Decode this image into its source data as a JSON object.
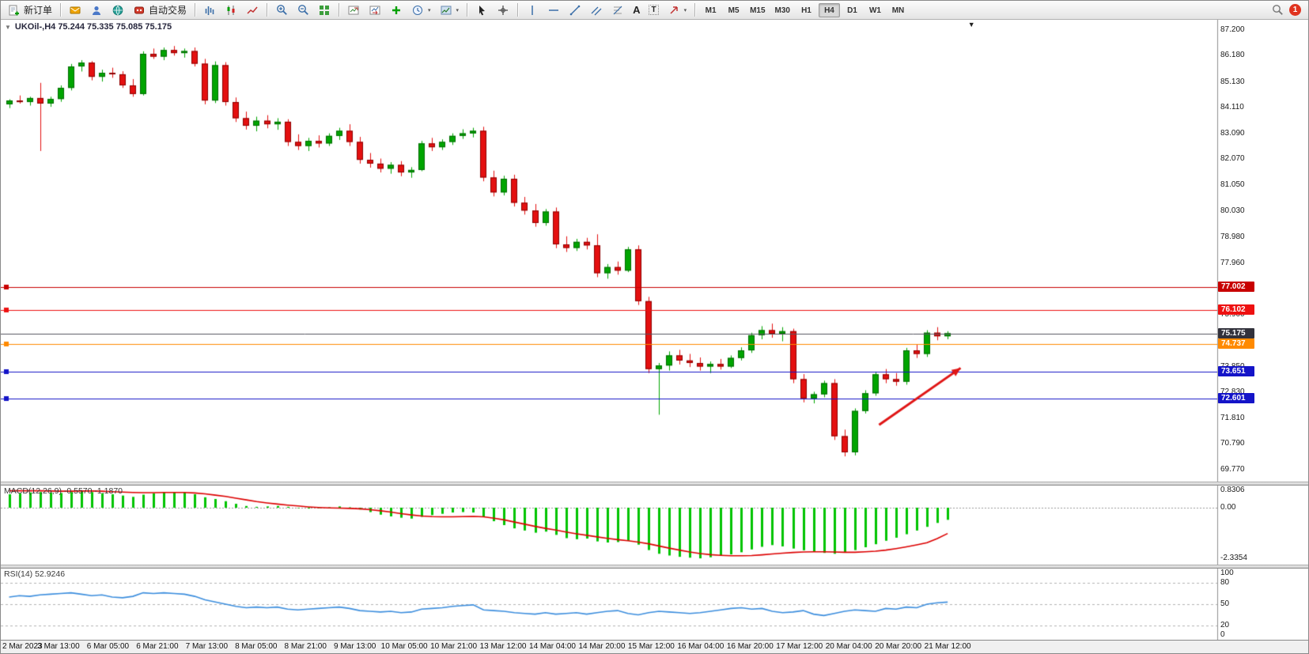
{
  "toolbar": {
    "new_order_label": "新订单",
    "auto_trading_label": "自动交易",
    "text_tool_label": "A",
    "textbox_tool_label": "T",
    "notification_count": "1",
    "timeframes": [
      {
        "label": "M1",
        "active": false
      },
      {
        "label": "M5",
        "active": false
      },
      {
        "label": "M15",
        "active": false
      },
      {
        "label": "M30",
        "active": false
      },
      {
        "label": "H1",
        "active": false
      },
      {
        "label": "H4",
        "active": true
      },
      {
        "label": "D1",
        "active": false
      },
      {
        "label": "W1",
        "active": false
      },
      {
        "label": "MN",
        "active": false
      }
    ]
  },
  "chart": {
    "symbol_info": "UKOil-,H4 75.244 75.335 75.085 75.175"
  },
  "indicators": {
    "macd": {
      "label": "MACD(12,26,9) -0.5570 -1.1870"
    },
    "rsi": {
      "label": "RSI(14) 52.9246"
    }
  },
  "time_axis": {
    "labels": [
      "2 Mar 2023",
      "3 Mar 13:00",
      "6 Mar 05:00",
      "6 Mar 21:00",
      "7 Mar 13:00",
      "8 Mar 05:00",
      "8 Mar 21:00",
      "9 Mar 13:00",
      "10 Mar 05:00",
      "10 Mar 21:00",
      "13 Mar 12:00",
      "14 Mar 04:00",
      "14 Mar 20:00",
      "15 Mar 12:00",
      "16 Mar 04:00",
      "16 Mar 20:00",
      "17 Mar 12:00",
      "20 Mar 04:00",
      "20 Mar 20:00",
      "21 Mar 12:00"
    ]
  },
  "chart_data": [
    {
      "id": "price",
      "type": "candlestick",
      "symbol": "UKOil-",
      "timeframe": "H4",
      "ohlc_readout": {
        "open": 75.244,
        "high": 75.335,
        "low": 75.085,
        "close": 75.175
      },
      "ylim": [
        69.3,
        87.6
      ],
      "region_frac": 0.78,
      "colors": {
        "up": "#00a500",
        "down": "#e41010",
        "up_border": "#006b00",
        "down_border": "#8d0000"
      },
      "y_axis": {
        "tick_labels": [
          "87.200",
          "86.180",
          "85.130",
          "84.110",
          "83.090",
          "82.070",
          "81.050",
          "80.030",
          "78.980",
          "77.960",
          "76.920",
          "75.900",
          "74.880",
          "73.850",
          "72.830",
          "71.810",
          "70.790",
          "69.770"
        ],
        "tick_values": [
          87.2,
          86.18,
          85.13,
          84.11,
          83.09,
          82.07,
          81.05,
          80.03,
          78.98,
          77.96,
          76.92,
          75.9,
          74.88,
          73.85,
          72.83,
          71.81,
          70.79,
          69.77
        ]
      },
      "hlines": [
        {
          "price": 77.002,
          "label": "77.002",
          "color": "#c80000"
        },
        {
          "price": 76.102,
          "label": "76.102",
          "color": "#ee1111"
        },
        {
          "price": 74.737,
          "label": "74.737",
          "color": "#ff8a00"
        },
        {
          "price": 73.651,
          "label": "73.651",
          "color": "#1414c8"
        },
        {
          "price": 72.601,
          "label": "72.601",
          "color": "#1414c8"
        }
      ],
      "current_price": {
        "price": 75.175,
        "label": "75.175",
        "color": "#32323c",
        "line_color": "#55555f"
      },
      "annotations": [
        {
          "type": "arrow",
          "x_frac_start": 0.722,
          "price_start": 71.55,
          "x_frac_end": 0.789,
          "price_end": 73.8,
          "color": "#e01616",
          "width": 3
        }
      ],
      "candles": [
        [
          84.25,
          84.45,
          84.1,
          84.4
        ],
        [
          84.4,
          84.6,
          84.28,
          84.34
        ],
        [
          84.34,
          84.55,
          84.2,
          84.5
        ],
        [
          84.5,
          85.1,
          82.4,
          84.28
        ],
        [
          84.28,
          84.55,
          84.15,
          84.46
        ],
        [
          84.46,
          85.0,
          84.35,
          84.9
        ],
        [
          84.9,
          85.85,
          84.8,
          85.75
        ],
        [
          85.75,
          86.0,
          85.55,
          85.9
        ],
        [
          85.9,
          85.96,
          85.2,
          85.34
        ],
        [
          85.34,
          85.62,
          85.15,
          85.5
        ],
        [
          85.5,
          85.7,
          85.3,
          85.44
        ],
        [
          85.44,
          85.56,
          84.9,
          85.0
        ],
        [
          85.0,
          85.25,
          84.55,
          84.66
        ],
        [
          84.66,
          86.35,
          84.6,
          86.25
        ],
        [
          86.25,
          86.46,
          86.05,
          86.14
        ],
        [
          86.14,
          86.5,
          86.0,
          86.4
        ],
        [
          86.4,
          86.56,
          86.18,
          86.28
        ],
        [
          86.28,
          86.46,
          86.1,
          86.36
        ],
        [
          86.36,
          86.5,
          85.75,
          85.86
        ],
        [
          85.86,
          86.05,
          84.25,
          84.4
        ],
        [
          84.4,
          85.95,
          84.3,
          85.8
        ],
        [
          85.8,
          85.92,
          84.2,
          84.34
        ],
        [
          84.34,
          84.52,
          83.55,
          83.7
        ],
        [
          83.7,
          83.96,
          83.25,
          83.4
        ],
        [
          83.4,
          83.76,
          83.18,
          83.6
        ],
        [
          83.6,
          83.82,
          83.3,
          83.46
        ],
        [
          83.46,
          83.7,
          83.24,
          83.56
        ],
        [
          83.56,
          83.66,
          82.6,
          82.76
        ],
        [
          82.76,
          83.06,
          82.44,
          82.6
        ],
        [
          82.6,
          82.92,
          82.4,
          82.8
        ],
        [
          82.8,
          83.02,
          82.54,
          82.7
        ],
        [
          82.7,
          83.1,
          82.6,
          83.0
        ],
        [
          83.0,
          83.32,
          82.84,
          83.2
        ],
        [
          83.2,
          83.46,
          82.6,
          82.76
        ],
        [
          82.76,
          82.96,
          81.9,
          82.05
        ],
        [
          82.05,
          82.32,
          81.74,
          81.9
        ],
        [
          81.9,
          82.1,
          81.55,
          81.7
        ],
        [
          81.7,
          81.96,
          81.5,
          81.85
        ],
        [
          81.85,
          82.0,
          81.4,
          81.55
        ],
        [
          81.55,
          81.76,
          81.34,
          81.65
        ],
        [
          81.65,
          82.8,
          81.6,
          82.7
        ],
        [
          82.7,
          82.92,
          82.4,
          82.55
        ],
        [
          82.55,
          82.86,
          82.44,
          82.76
        ],
        [
          82.76,
          83.1,
          82.64,
          83.0
        ],
        [
          83.0,
          83.26,
          82.88,
          83.1
        ],
        [
          83.1,
          83.32,
          82.94,
          83.2
        ],
        [
          83.2,
          83.36,
          81.2,
          81.35
        ],
        [
          81.35,
          81.62,
          80.6,
          80.76
        ],
        [
          80.76,
          81.42,
          80.64,
          81.3
        ],
        [
          81.3,
          81.46,
          80.2,
          80.35
        ],
        [
          80.35,
          80.58,
          79.88,
          80.04
        ],
        [
          80.04,
          80.3,
          79.4,
          79.55
        ],
        [
          79.55,
          80.1,
          79.44,
          80.0
        ],
        [
          80.0,
          80.16,
          78.55,
          78.7
        ],
        [
          78.7,
          79.02,
          78.4,
          78.56
        ],
        [
          78.56,
          78.92,
          78.44,
          78.8
        ],
        [
          78.8,
          78.96,
          78.5,
          78.66
        ],
        [
          78.66,
          79.1,
          77.4,
          77.56
        ],
        [
          77.56,
          77.92,
          77.34,
          77.8
        ],
        [
          77.8,
          78.02,
          77.5,
          77.66
        ],
        [
          77.66,
          78.6,
          77.6,
          78.5
        ],
        [
          78.5,
          78.66,
          76.3,
          76.45
        ],
        [
          76.45,
          76.62,
          73.6,
          73.76
        ],
        [
          73.76,
          74.0,
          71.95,
          73.9
        ],
        [
          73.9,
          74.46,
          73.7,
          74.3
        ],
        [
          74.3,
          74.52,
          73.94,
          74.1
        ],
        [
          74.1,
          74.36,
          73.84,
          74.0
        ],
        [
          74.0,
          74.22,
          73.7,
          73.86
        ],
        [
          73.86,
          74.06,
          73.6,
          73.96
        ],
        [
          73.96,
          74.16,
          73.74,
          73.86
        ],
        [
          73.86,
          74.3,
          73.8,
          74.2
        ],
        [
          74.2,
          74.62,
          74.1,
          74.5
        ],
        [
          74.5,
          75.2,
          74.4,
          75.1
        ],
        [
          75.1,
          75.46,
          74.94,
          75.3
        ],
        [
          75.3,
          75.56,
          75.0,
          75.16
        ],
        [
          75.16,
          75.42,
          74.86,
          75.26
        ],
        [
          75.26,
          75.36,
          73.2,
          73.36
        ],
        [
          73.36,
          73.56,
          72.44,
          72.6
        ],
        [
          72.6,
          72.86,
          72.4,
          72.76
        ],
        [
          72.76,
          73.3,
          72.64,
          73.2
        ],
        [
          73.2,
          73.36,
          70.95,
          71.1
        ],
        [
          71.1,
          71.36,
          70.3,
          70.46
        ],
        [
          70.46,
          72.2,
          70.34,
          72.1
        ],
        [
          72.1,
          72.92,
          72.0,
          72.8
        ],
        [
          72.8,
          73.66,
          72.7,
          73.55
        ],
        [
          73.55,
          73.76,
          73.2,
          73.36
        ],
        [
          73.36,
          73.6,
          73.1,
          73.26
        ],
        [
          73.26,
          74.6,
          73.14,
          74.5
        ],
        [
          74.5,
          74.72,
          74.2,
          74.36
        ],
        [
          74.36,
          75.3,
          74.24,
          75.2
        ],
        [
          75.2,
          75.42,
          74.9,
          75.06
        ],
        [
          75.06,
          75.26,
          74.94,
          75.18
        ]
      ]
    },
    {
      "id": "macd",
      "type": "bar",
      "label": "MACD(12,26,9) -0.5570 -1.1870",
      "values_readout": [
        -0.557,
        -1.187
      ],
      "ylim": [
        -2.62,
        1.02
      ],
      "y_ticks": [
        {
          "label": "0.8306",
          "value": 0.8306
        },
        {
          "label": "0.00",
          "value": 0
        },
        {
          "label": "-2.3354",
          "value": -2.3354
        }
      ],
      "colors": {
        "histogram": "#00c400",
        "signal": "#dd0000"
      },
      "histogram": [
        0.62,
        0.66,
        0.7,
        0.72,
        0.7,
        0.68,
        0.72,
        0.76,
        0.72,
        0.66,
        0.62,
        0.56,
        0.5,
        0.6,
        0.66,
        0.7,
        0.72,
        0.7,
        0.62,
        0.48,
        0.4,
        0.3,
        0.18,
        0.08,
        0.04,
        0.06,
        0.08,
        0.04,
        -0.02,
        -0.04,
        -0.02,
        0.02,
        0.06,
        0.02,
        -0.08,
        -0.2,
        -0.32,
        -0.4,
        -0.46,
        -0.5,
        -0.42,
        -0.34,
        -0.28,
        -0.22,
        -0.2,
        -0.22,
        -0.4,
        -0.62,
        -0.8,
        -0.95,
        -1.05,
        -1.15,
        -1.1,
        -1.25,
        -1.4,
        -1.45,
        -1.42,
        -1.55,
        -1.6,
        -1.58,
        -1.52,
        -1.7,
        -1.95,
        -2.12,
        -2.2,
        -2.26,
        -2.3,
        -2.33,
        -2.28,
        -2.22,
        -2.15,
        -2.05,
        -1.92,
        -1.8,
        -1.72,
        -1.78,
        -1.88,
        -1.96,
        -2.02,
        -2.08,
        -2.12,
        -2.05,
        -1.95,
        -1.82,
        -1.68,
        -1.52,
        -1.38,
        -1.22,
        -1.05,
        -0.88,
        -0.7,
        -0.557
      ],
      "signal": [
        0.78,
        0.78,
        0.78,
        0.78,
        0.77,
        0.76,
        0.76,
        0.77,
        0.77,
        0.76,
        0.74,
        0.72,
        0.7,
        0.69,
        0.69,
        0.7,
        0.7,
        0.7,
        0.68,
        0.64,
        0.58,
        0.52,
        0.44,
        0.36,
        0.28,
        0.22,
        0.17,
        0.12,
        0.08,
        0.04,
        0.01,
        -0.01,
        -0.02,
        -0.03,
        -0.05,
        -0.09,
        -0.14,
        -0.2,
        -0.27,
        -0.33,
        -0.38,
        -0.41,
        -0.42,
        -0.42,
        -0.41,
        -0.4,
        -0.42,
        -0.48,
        -0.56,
        -0.66,
        -0.76,
        -0.86,
        -0.95,
        -1.03,
        -1.12,
        -1.2,
        -1.27,
        -1.34,
        -1.41,
        -1.47,
        -1.52,
        -1.58,
        -1.66,
        -1.76,
        -1.86,
        -1.95,
        -2.04,
        -2.11,
        -2.16,
        -2.19,
        -2.21,
        -2.21,
        -2.2,
        -2.17,
        -2.13,
        -2.09,
        -2.06,
        -2.04,
        -2.03,
        -2.03,
        -2.04,
        -2.05,
        -2.05,
        -2.03,
        -2.0,
        -1.95,
        -1.88,
        -1.8,
        -1.71,
        -1.61,
        -1.42,
        -1.187
      ]
    },
    {
      "id": "rsi",
      "type": "line",
      "label": "RSI(14) 52.9246",
      "value_readout": 52.9246,
      "ylim": [
        0,
        100
      ],
      "levels": [
        80,
        50,
        20
      ],
      "y_ticks": [
        {
          "label": "100",
          "value": 100
        },
        {
          "label": "80",
          "value": 80
        },
        {
          "label": "50",
          "value": 50
        },
        {
          "label": "20",
          "value": 20
        },
        {
          "label": "0",
          "value": 0
        }
      ],
      "color": "#3c8ede",
      "values": [
        60,
        62,
        61,
        63,
        64,
        65,
        66,
        64,
        62,
        63,
        60,
        59,
        61,
        66,
        65,
        66,
        65,
        64,
        61,
        56,
        53,
        50,
        47,
        45,
        46,
        45,
        46,
        43,
        42,
        43,
        44,
        45,
        46,
        44,
        41,
        40,
        39,
        40,
        38,
        39,
        43,
        44,
        45,
        47,
        48,
        49,
        42,
        41,
        40,
        38,
        37,
        36,
        38,
        36,
        37,
        38,
        36,
        38,
        40,
        41,
        37,
        35,
        38,
        40,
        39,
        38,
        37,
        38,
        40,
        42,
        44,
        45,
        43,
        44,
        40,
        38,
        39,
        41,
        36,
        34,
        37,
        40,
        42,
        41,
        40,
        44,
        43,
        46,
        45,
        50,
        52,
        52.9
      ]
    }
  ]
}
